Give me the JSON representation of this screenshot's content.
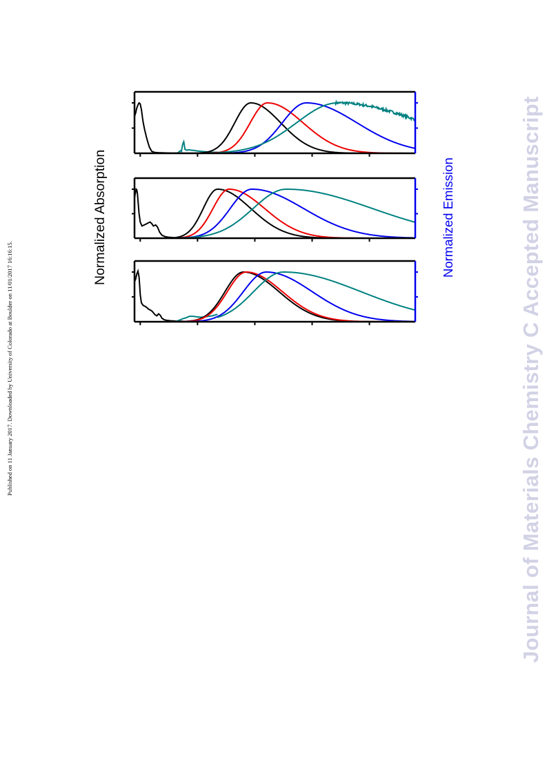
{
  "page": {
    "published_line": "Published on 11 January 2017. Downloaded by University of Colorado at Boulder on 11/01/2017 16:16:15.",
    "watermark": "Journal of Materials Chemistry C Accepted Manuscript"
  },
  "chart_data": {
    "type": "line",
    "ylabel_left": "Normalized Absorption",
    "ylabel_right": "Normalized Emission",
    "colors": {
      "black": "#000000",
      "red": "#ee0000",
      "blue": "#0000ee",
      "teal": "#008080",
      "right_axis": "#0000ee"
    },
    "panels": [
      {
        "absorption": {
          "color": "black",
          "points": [
            [
              0,
              0.73
            ],
            [
              0.02,
              0.8
            ],
            [
              0.04,
              0.9
            ],
            [
              0.06,
              0.96
            ],
            [
              0.08,
              1.0
            ],
            [
              0.1,
              0.98
            ],
            [
              0.12,
              0.87
            ],
            [
              0.15,
              0.62
            ],
            [
              0.18,
              0.45
            ],
            [
              0.22,
              0.27
            ],
            [
              0.26,
              0.12
            ],
            [
              0.3,
              0.04
            ],
            [
              0.36,
              0.015
            ],
            [
              0.45,
              0.01
            ],
            [
              0.6,
              0.005
            ],
            [
              1.0,
              0.0
            ]
          ]
        },
        "teal_feature": [
          [
            0.7,
            0.0
          ],
          [
            0.76,
            0.01
          ],
          [
            0.8,
            0.05
          ],
          [
            0.82,
            0.04
          ],
          [
            0.84,
            0.18
          ],
          [
            0.86,
            0.23
          ],
          [
            0.88,
            0.08
          ],
          [
            0.91,
            0.06
          ],
          [
            0.95,
            0.07
          ],
          [
            1.0,
            0.06
          ],
          [
            1.05,
            0.055
          ],
          [
            1.1,
            0.045
          ],
          [
            1.2,
            0.035
          ],
          [
            1.3,
            0.025
          ],
          [
            1.4,
            0.02
          ],
          [
            1.45,
            0.02
          ]
        ],
        "emission": [
          {
            "color": "black",
            "peak": 2.03,
            "left_width": 0.28,
            "right_width": 0.52
          },
          {
            "color": "red",
            "peak": 2.32,
            "left_width": 0.3,
            "right_width": 0.62
          },
          {
            "color": "blue",
            "peak": 3.0,
            "left_width": 0.42,
            "right_width": 0.88
          },
          {
            "color": "teal",
            "peak": 3.55,
            "left_width": 0.72,
            "right_width": 1.5,
            "noisy": true,
            "start": 1.45
          }
        ]
      },
      {
        "absorption": {
          "color": "black",
          "points": [
            [
              0,
              0.82
            ],
            [
              0.015,
              0.92
            ],
            [
              0.03,
              1.0
            ],
            [
              0.045,
              0.98
            ],
            [
              0.06,
              0.78
            ],
            [
              0.08,
              0.5
            ],
            [
              0.1,
              0.33
            ],
            [
              0.13,
              0.25
            ],
            [
              0.17,
              0.27
            ],
            [
              0.22,
              0.3
            ],
            [
              0.27,
              0.33
            ],
            [
              0.3,
              0.3
            ],
            [
              0.33,
              0.25
            ],
            [
              0.37,
              0.27
            ],
            [
              0.4,
              0.23
            ],
            [
              0.44,
              0.12
            ],
            [
              0.48,
              0.06
            ],
            [
              0.54,
              0.03
            ],
            [
              0.6,
              0.02
            ],
            [
              0.7,
              0.01
            ],
            [
              0.8,
              0.005
            ],
            [
              1.0,
              0.0
            ]
          ]
        },
        "emission": [
          {
            "color": "black",
            "peak": 1.45,
            "left_width": 0.25,
            "right_width": 0.58
          },
          {
            "color": "red",
            "peak": 1.65,
            "left_width": 0.28,
            "right_width": 0.62
          },
          {
            "color": "blue",
            "peak": 2.05,
            "left_width": 0.38,
            "right_width": 0.9
          },
          {
            "color": "teal",
            "peak": 2.65,
            "left_width": 0.58,
            "right_width": 1.5
          }
        ]
      },
      {
        "absorption": {
          "color": "black",
          "points": [
            [
              0,
              0.8
            ],
            [
              0.02,
              0.86
            ],
            [
              0.04,
              0.96
            ],
            [
              0.06,
              1.02
            ],
            [
              0.08,
              0.9
            ],
            [
              0.1,
              0.55
            ],
            [
              0.12,
              0.38
            ],
            [
              0.15,
              0.33
            ],
            [
              0.2,
              0.3
            ],
            [
              0.25,
              0.25
            ],
            [
              0.3,
              0.22
            ],
            [
              0.33,
              0.18
            ],
            [
              0.36,
              0.14
            ],
            [
              0.39,
              0.12
            ],
            [
              0.42,
              0.16
            ],
            [
              0.45,
              0.13
            ],
            [
              0.48,
              0.07
            ],
            [
              0.52,
              0.04
            ],
            [
              0.56,
              0.03
            ],
            [
              0.62,
              0.02
            ],
            [
              0.7,
              0.015
            ],
            [
              0.8,
              0.01
            ],
            [
              0.9,
              0.007
            ],
            [
              1.0,
              0.003
            ],
            [
              1.3,
              0.0
            ]
          ]
        },
        "teal_feature": [
          [
            0.7,
            0.0
          ],
          [
            0.78,
            0.03
          ],
          [
            0.84,
            0.06
          ],
          [
            0.9,
            0.08
          ],
          [
            0.96,
            0.11
          ],
          [
            1.02,
            0.11
          ],
          [
            1.08,
            0.1
          ],
          [
            1.16,
            0.09
          ],
          [
            1.24,
            0.1
          ],
          [
            1.3,
            0.11
          ],
          [
            1.36,
            0.12
          ],
          [
            1.42,
            0.14
          ],
          [
            1.45,
            0.15
          ]
        ],
        "emission": [
          {
            "color": "black",
            "peak": 1.9,
            "left_width": 0.32,
            "right_width": 0.62
          },
          {
            "color": "red",
            "peak": 1.95,
            "left_width": 0.33,
            "right_width": 0.63
          },
          {
            "color": "blue",
            "peak": 2.3,
            "left_width": 0.4,
            "right_width": 0.8
          },
          {
            "color": "teal",
            "peak": 2.6,
            "left_width": 0.52,
            "right_width": 1.35,
            "start": 1.45
          }
        ]
      }
    ]
  }
}
